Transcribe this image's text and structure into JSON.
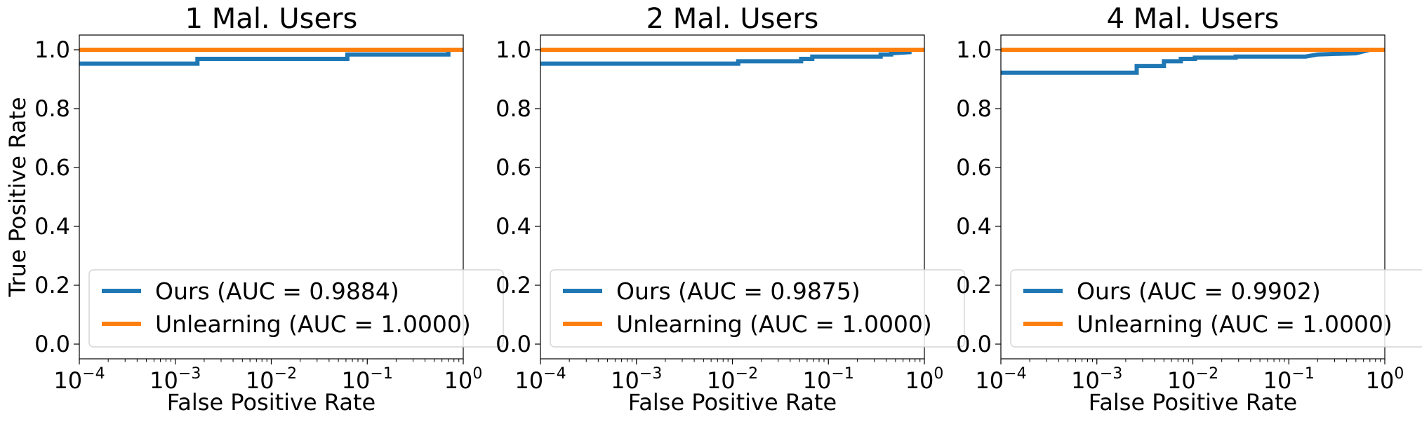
{
  "chart_data": [
    {
      "type": "line",
      "title": "1 Mal. Users",
      "xlabel": "False Positive Rate",
      "ylabel": "True Positive Rate",
      "xscale": "log",
      "xlim": [
        0.0001,
        1
      ],
      "ylim": [
        -0.05,
        1.05
      ],
      "grid": false,
      "legend_position": "lower-right",
      "series": [
        {
          "name": "Ours (AUC = 0.9884)",
          "color": "#1f77b4",
          "points": [
            [
              0.0001,
              0.953
            ],
            [
              0.0017,
              0.953
            ],
            [
              0.0017,
              0.969
            ],
            [
              0.062,
              0.969
            ],
            [
              0.062,
              0.984
            ],
            [
              0.7,
              0.984
            ],
            [
              0.7,
              1.0
            ],
            [
              1.0,
              1.0
            ]
          ]
        },
        {
          "name": "Unlearning (AUC = 1.0000)",
          "color": "#ff7f0e",
          "points": [
            [
              0.0001,
              1.0
            ],
            [
              1.0,
              1.0
            ]
          ]
        }
      ]
    },
    {
      "type": "line",
      "title": "2 Mal. Users",
      "xlabel": "False Positive Rate",
      "ylabel": "",
      "xscale": "log",
      "xlim": [
        0.0001,
        1
      ],
      "ylim": [
        -0.05,
        1.05
      ],
      "grid": false,
      "legend_position": "lower-right",
      "series": [
        {
          "name": "Ours (AUC = 0.9875)",
          "color": "#1f77b4",
          "points": [
            [
              0.0001,
              0.953
            ],
            [
              0.0115,
              0.953
            ],
            [
              0.0115,
              0.961
            ],
            [
              0.052,
              0.961
            ],
            [
              0.052,
              0.969
            ],
            [
              0.068,
              0.969
            ],
            [
              0.068,
              0.977
            ],
            [
              0.35,
              0.977
            ],
            [
              0.35,
              0.984
            ],
            [
              0.45,
              0.984
            ],
            [
              0.45,
              0.988
            ],
            [
              0.7,
              0.992
            ],
            [
              0.7,
              1.0
            ],
            [
              1.0,
              1.0
            ]
          ]
        },
        {
          "name": "Unlearning (AUC = 1.0000)",
          "color": "#ff7f0e",
          "points": [
            [
              0.0001,
              1.0
            ],
            [
              1.0,
              1.0
            ]
          ]
        }
      ]
    },
    {
      "type": "line",
      "title": "4 Mal. Users",
      "xlabel": "False Positive Rate",
      "ylabel": "",
      "xscale": "log",
      "xlim": [
        0.0001,
        1
      ],
      "ylim": [
        -0.05,
        1.05
      ],
      "grid": false,
      "legend_position": "lower-right",
      "series": [
        {
          "name": "Ours (AUC = 0.9902)",
          "color": "#1f77b4",
          "points": [
            [
              0.0001,
              0.922
            ],
            [
              0.0026,
              0.922
            ],
            [
              0.0026,
              0.945
            ],
            [
              0.005,
              0.945
            ],
            [
              0.005,
              0.961
            ],
            [
              0.0075,
              0.961
            ],
            [
              0.0075,
              0.969
            ],
            [
              0.0105,
              0.969
            ],
            [
              0.0105,
              0.973
            ],
            [
              0.028,
              0.973
            ],
            [
              0.028,
              0.977
            ],
            [
              0.15,
              0.977
            ],
            [
              0.2,
              0.984
            ],
            [
              0.5,
              0.988
            ],
            [
              0.7,
              1.0
            ],
            [
              1.0,
              1.0
            ]
          ]
        },
        {
          "name": "Unlearning (AUC = 1.0000)",
          "color": "#ff7f0e",
          "points": [
            [
              0.0001,
              1.0
            ],
            [
              1.0,
              1.0
            ]
          ]
        }
      ]
    }
  ]
}
